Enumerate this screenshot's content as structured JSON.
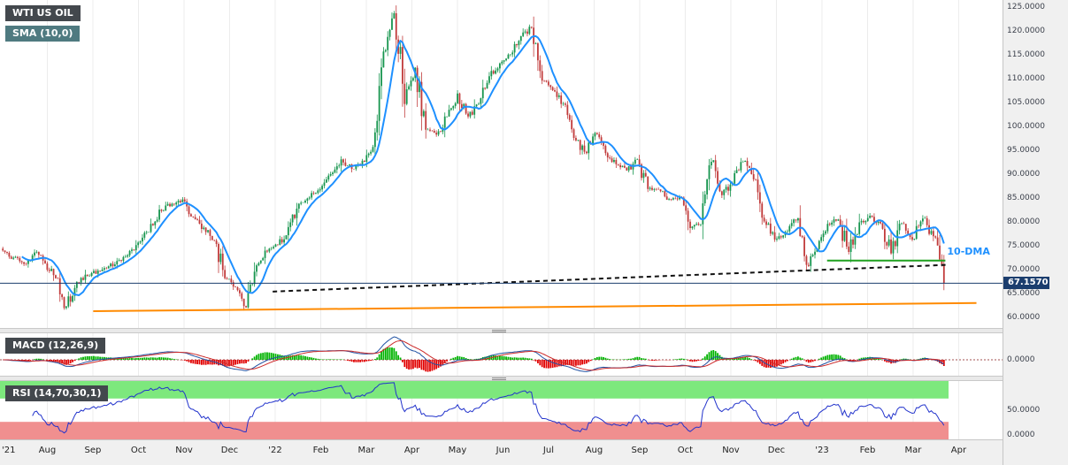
{
  "header_badges": {
    "symbol": "WTI US OIL",
    "sma": "SMA (10,0)",
    "macd": "MACD (12,26,9)",
    "rsi": "RSI (14,70,30,1)"
  },
  "price_axis": {
    "labels": [
      "125.0000",
      "120.0000",
      "115.0000",
      "110.0000",
      "105.0000",
      "100.0000",
      "95.0000",
      "90.0000",
      "85.0000",
      "80.0000",
      "75.0000",
      "70.0000",
      "65.0000",
      "60.0000"
    ],
    "badge": "67.1570"
  },
  "macd_axis": {
    "labels": [
      "0.0000"
    ]
  },
  "rsi_axis": {
    "labels": [
      "50.0000",
      "0.0000"
    ]
  },
  "time_axis": {
    "labels": [
      "'21",
      "Aug",
      "Sep",
      "Oct",
      "Nov",
      "Dec",
      "'22",
      "Feb",
      "Mar",
      "Apr",
      "May",
      "Jun",
      "Jul",
      "Aug",
      "Sep",
      "Oct",
      "Nov",
      "Dec",
      "'23",
      "Feb",
      "Mar",
      "Apr"
    ]
  },
  "annotations": {
    "dma_label": "10-DMA"
  },
  "chart_data": [
    {
      "type": "candlestick",
      "title": "WTI US OIL with SMA(10,0)",
      "x_range": "Jul 2021 - Mar 2023",
      "ylim": [
        57.8,
        126.5
      ],
      "y_ticks": [
        125,
        120,
        115,
        110,
        105,
        100,
        95,
        90,
        85,
        80,
        75,
        70,
        65,
        60
      ],
      "last_price": 67.157,
      "weekly_closes": [
        74.0,
        72.5,
        71.2,
        73.6,
        71.3,
        68.2,
        62.3,
        67.4,
        68.7,
        69.8,
        70.7,
        72.0,
        73.9,
        75.9,
        79.6,
        82.3,
        83.8,
        84.7,
        81.0,
        78.8,
        76.1,
        68.2,
        66.3,
        62.1,
        70.9,
        73.8,
        75.2,
        78.9,
        83.8,
        85.1,
        86.8,
        90.0,
        93.1,
        91.1,
        92.8,
        95.7,
        115.7,
        123.7,
        104.7,
        112.3,
        99.3,
        98.3,
        102.1,
        106.9,
        102.1,
        104.7,
        110.5,
        113.2,
        115.1,
        118.9,
        120.7,
        109.6,
        107.6,
        104.8,
        97.6,
        94.7,
        98.6,
        94.4,
        92.1,
        90.8,
        93.1,
        86.9,
        86.8,
        84.8,
        85.1,
        78.7,
        79.5,
        92.6,
        85.6,
        88.0,
        92.6,
        88.9,
        80.1,
        76.3,
        77.9,
        80.3,
        71.0,
        74.3,
        79.6,
        80.5,
        73.7,
        79.9,
        81.3,
        79.7,
        73.4,
        79.7,
        76.3,
        80.7,
        77.0,
        67.157
      ],
      "colors": {
        "up": "#16954e",
        "down": "#c13b3b"
      },
      "overlays": {
        "sma": {
          "period": 10,
          "offset": 0,
          "color": "#1e90ff"
        },
        "orange_trendline": {
          "x1_frac": 0.093,
          "price1": 61.3,
          "x2_frac": 0.974,
          "price2": 63.0,
          "color": "#ff8a00"
        },
        "dotted_trendline": {
          "x1_frac": 0.272,
          "price1": 65.4,
          "x2_frac": 0.945,
          "price2": 71.0,
          "color": "#111111"
        },
        "green_level": {
          "price": 71.9,
          "x1_frac": 0.825,
          "x2_frac": 0.943,
          "color": "#1fa11f"
        },
        "price_line": {
          "price": 67.157,
          "color": "#1c3e6e"
        }
      }
    },
    {
      "type": "line",
      "name": "MACD (12,26,9)",
      "panel": "macd",
      "params": [
        12,
        26,
        9
      ],
      "zero_line": 0,
      "axis_tick": "0.0000",
      "colors": {
        "macd_line": "#2152a3",
        "signal_line": "#cc2a2a",
        "hist_up": "#00b300",
        "hist_down": "#e10000"
      }
    },
    {
      "type": "line",
      "name": "RSI (14,70,30,1)",
      "panel": "rsi",
      "params": [
        14,
        70,
        30,
        1
      ],
      "bands": {
        "overbought": 70,
        "oversold": 30
      },
      "y_ticks": [
        50,
        0
      ],
      "colors": {
        "line": "#2233cc",
        "overbought_zone": "#7de87d",
        "oversold_zone": "#f08f8f"
      }
    }
  ]
}
